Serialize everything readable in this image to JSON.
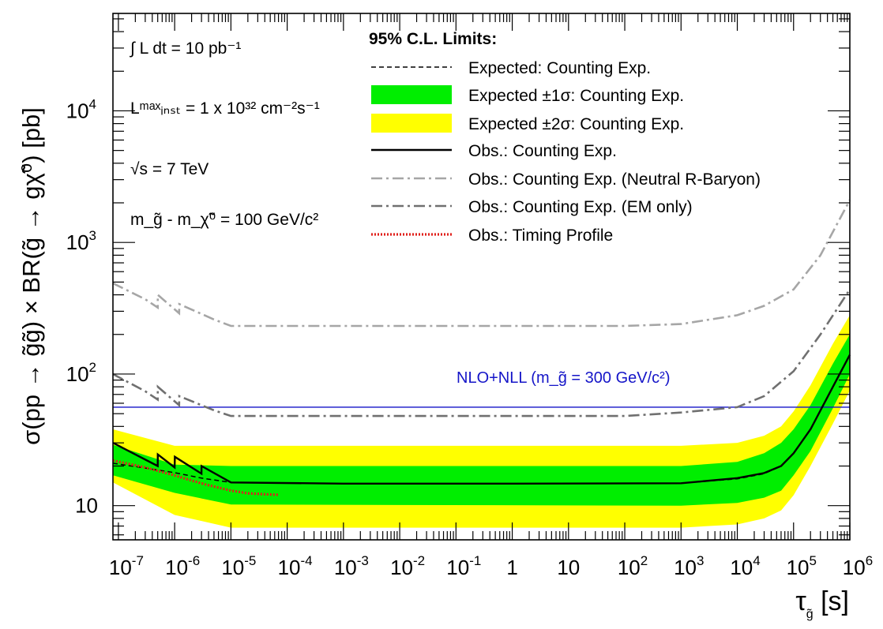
{
  "chart_data": {
    "type": "line",
    "xaxis": {
      "label_main": "τ",
      "label_sub": "g̃",
      "label_unit": " [s]",
      "scale": "log",
      "xlim": [
        8e-08,
        1000000.0
      ],
      "ticks": [
        {
          "v": 1e-07,
          "base": "10",
          "exp": "-7"
        },
        {
          "v": 1e-06,
          "base": "10",
          "exp": "-6"
        },
        {
          "v": 1e-05,
          "base": "10",
          "exp": "-5"
        },
        {
          "v": 0.0001,
          "base": "10",
          "exp": "-4"
        },
        {
          "v": 0.001,
          "base": "10",
          "exp": "-3"
        },
        {
          "v": 0.01,
          "base": "10",
          "exp": "-2"
        },
        {
          "v": 0.1,
          "base": "10",
          "exp": "-1"
        },
        {
          "v": 1,
          "base": "1",
          "exp": ""
        },
        {
          "v": 10,
          "base": "10",
          "exp": ""
        },
        {
          "v": 100.0,
          "base": "10",
          "exp": "2"
        },
        {
          "v": 1000.0,
          "base": "10",
          "exp": "3"
        },
        {
          "v": 10000.0,
          "base": "10",
          "exp": "4"
        },
        {
          "v": 100000.0,
          "base": "10",
          "exp": "5"
        },
        {
          "v": 1000000.0,
          "base": "10",
          "exp": "6"
        }
      ]
    },
    "yaxis": {
      "label": "σ(pp → g̃g̃) × BR(g̃ → gχ̃⁰) [pb]",
      "scale": "log",
      "ylim": [
        5.5,
        55000
      ],
      "ticks": [
        {
          "v": 10,
          "base": "10",
          "exp": ""
        },
        {
          "v": 100,
          "base": "10",
          "exp": "2"
        },
        {
          "v": 1000,
          "base": "10",
          "exp": "3"
        },
        {
          "v": 10000,
          "base": "10",
          "exp": "4"
        }
      ]
    },
    "annotations": {
      "lumi": "∫ L dt = 10 pb⁻¹",
      "inst": "Lᵐᵃˣᵢₙₛₜ = 1 x 10³² cm⁻²s⁻¹",
      "energy": "√s = 7 TeV",
      "massdiff": "m_g̃ - m_χ̃⁰ = 100 GeV/c²"
    },
    "legend": {
      "placement": "top-right",
      "title": "95% C.L. Limits:",
      "entries": [
        {
          "label": "Expected: Counting Exp.",
          "style": "dashed"
        },
        {
          "label": "Expected ±1σ: Counting Exp.",
          "style": "band1"
        },
        {
          "label": "Expected ±2σ: Counting Exp.",
          "style": "band2"
        },
        {
          "label": "Obs.: Counting Exp.",
          "style": "solid"
        },
        {
          "label": "Obs.: Counting Exp. (Neutral R-Baryon)",
          "style": "dashdot-light"
        },
        {
          "label": "Obs.: Counting Exp. (EM only)",
          "style": "dashdot-dark"
        },
        {
          "label": "Obs.: Timing Profile",
          "style": "dotted-red"
        }
      ]
    },
    "reference_line": {
      "name": "NLO+NLL (m_g̃ = 300 GeV/c²)",
      "y": 56
    },
    "colors": {
      "band1": "#00ee00",
      "band2": "#ffff00",
      "expected": "#000000",
      "observed": "#000000",
      "neutral": "#a6a6a6",
      "em": "#707070",
      "timing": "#e0201b",
      "reference": "#1515c8"
    },
    "series": [
      {
        "name": "Expected: Counting Exp.",
        "x": [
          8e-08,
          3e-07,
          1e-06,
          3e-06,
          1e-05,
          0.001,
          1,
          1000.0,
          10000.0,
          30000.0,
          60000.0,
          100000.0,
          200000.0,
          500000.0,
          1000000.0
        ],
        "y": [
          21,
          19.3,
          17.8,
          16.2,
          15.0,
          14.7,
          14.7,
          14.8,
          16,
          17.5,
          20,
          25,
          38,
          80,
          140
        ]
      },
      {
        "name": "Expected ±1σ: Counting Exp.",
        "x": [
          8e-08,
          1e-06,
          1e-05,
          1000.0,
          10000.0,
          30000.0,
          60000.0,
          100000.0,
          200000.0,
          500000.0,
          1000000.0
        ],
        "lo": [
          17,
          12.5,
          10.2,
          10,
          10.5,
          11.5,
          13,
          17,
          26,
          55,
          100
        ],
        "hi": [
          29,
          20.5,
          20,
          20,
          21.5,
          25,
          30,
          38,
          58,
          120,
          200
        ]
      },
      {
        "name": "Expected ±2σ: Counting Exp.",
        "x": [
          8e-08,
          1e-06,
          1e-05,
          1000.0,
          10000.0,
          30000.0,
          60000.0,
          100000.0,
          200000.0,
          500000.0,
          1000000.0
        ],
        "lo": [
          15,
          8.5,
          6.8,
          6.8,
          7.2,
          8,
          9.2,
          12,
          20,
          42,
          75
        ],
        "hi": [
          38,
          28.5,
          28.5,
          28.5,
          30,
          34,
          40,
          52,
          82,
          170,
          280
        ]
      },
      {
        "name": "Obs.: Counting Exp.",
        "x": [
          8e-08,
          2e-07,
          5e-07,
          5.01e-07,
          1e-06,
          1.01e-06,
          3e-06,
          3.01e-06,
          1e-05,
          0.001,
          1,
          1000.0,
          10000.0,
          30000.0,
          60000.0,
          100000.0,
          200000.0,
          500000.0,
          1000000.0
        ],
        "y": [
          30,
          24.5,
          20,
          24.5,
          19.5,
          23.5,
          17.5,
          20,
          15.0,
          14.7,
          14.7,
          14.8,
          16.2,
          17.7,
          20,
          25,
          38,
          80,
          140
        ]
      },
      {
        "name": "Obs.: Counting Exp. (Neutral R-Baryon)",
        "x": [
          8e-08,
          3e-07,
          5e-07,
          5.01e-07,
          1.2e-06,
          1.21e-06,
          5e-06,
          1e-05,
          0.001,
          1,
          100.0,
          1000.0,
          10000.0,
          30000.0,
          100000.0,
          300000.0,
          1000000.0
        ],
        "y": [
          490,
          370,
          320,
          400,
          290,
          340,
          260,
          232,
          232,
          232,
          232,
          240,
          280,
          330,
          440,
          800,
          2100
        ]
      },
      {
        "name": "Obs.: Counting Exp. (EM only)",
        "x": [
          8e-08,
          3e-07,
          5e-07,
          5.01e-07,
          1.2e-06,
          1.21e-06,
          5e-06,
          1e-05,
          0.001,
          1,
          100.0,
          1000.0,
          10000.0,
          30000.0,
          100000.0,
          300000.0,
          1000000.0
        ],
        "y": [
          100,
          74,
          64,
          80,
          58,
          68,
          53,
          48,
          48,
          48,
          48,
          51,
          56,
          68,
          105,
          200,
          440
        ]
      },
      {
        "name": "Obs.: Timing Profile",
        "x": [
          8e-08,
          1.5e-07,
          3e-07,
          6e-07,
          1e-06,
          2e-06,
          4e-06,
          1e-05,
          2e-05,
          4e-05,
          7e-05
        ],
        "y": [
          22,
          20.8,
          19.5,
          18,
          17,
          15.5,
          14.3,
          13,
          12.4,
          12.2,
          12.1
        ]
      }
    ]
  }
}
